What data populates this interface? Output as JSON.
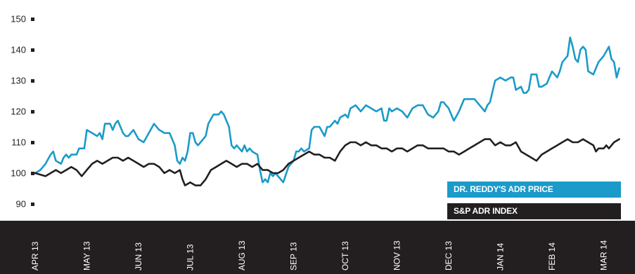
{
  "chart_data": {
    "type": "line",
    "title": "",
    "xlabel": "",
    "ylabel": "",
    "ylim": [
      85,
      152
    ],
    "y_ticks": [
      "150",
      "140",
      "130",
      "120",
      "110",
      "100",
      "90"
    ],
    "x_labels": [
      "APR 13",
      "MAY 13",
      "JUN 13",
      "JUL 13",
      "AUG 13",
      "SEP 13",
      "OCT 13",
      "NOV 13",
      "DEC 13",
      "JAN 14",
      "FEB 14",
      "MAR 14"
    ],
    "x_range": [
      0,
      11.3
    ],
    "grid": false,
    "legend_position": "bottom-right",
    "series": [
      {
        "name": "DR. REDDY'S ADR PRICE",
        "color": "#1a9bc9",
        "points": [
          [
            0,
            100
          ],
          [
            0.1,
            101
          ],
          [
            0.2,
            103
          ],
          [
            0.3,
            106
          ],
          [
            0.35,
            107
          ],
          [
            0.4,
            104
          ],
          [
            0.5,
            103
          ],
          [
            0.55,
            105
          ],
          [
            0.6,
            106
          ],
          [
            0.65,
            105
          ],
          [
            0.7,
            106
          ],
          [
            0.8,
            106
          ],
          [
            0.85,
            108
          ],
          [
            0.95,
            108
          ],
          [
            1.0,
            114
          ],
          [
            1.1,
            113
          ],
          [
            1.2,
            112
          ],
          [
            1.25,
            113
          ],
          [
            1.3,
            111
          ],
          [
            1.35,
            116
          ],
          [
            1.45,
            116
          ],
          [
            1.5,
            114
          ],
          [
            1.55,
            116
          ],
          [
            1.6,
            117
          ],
          [
            1.7,
            113
          ],
          [
            1.75,
            112
          ],
          [
            1.8,
            112
          ],
          [
            1.9,
            114
          ],
          [
            2.0,
            111
          ],
          [
            2.1,
            110
          ],
          [
            2.2,
            113
          ],
          [
            2.3,
            116
          ],
          [
            2.4,
            114
          ],
          [
            2.5,
            113
          ],
          [
            2.6,
            113
          ],
          [
            2.7,
            109
          ],
          [
            2.75,
            104
          ],
          [
            2.8,
            103
          ],
          [
            2.85,
            105
          ],
          [
            2.9,
            104
          ],
          [
            2.95,
            107
          ],
          [
            3.0,
            113
          ],
          [
            3.05,
            113
          ],
          [
            3.1,
            110
          ],
          [
            3.15,
            109
          ],
          [
            3.2,
            110
          ],
          [
            3.3,
            112
          ],
          [
            3.35,
            116
          ],
          [
            3.45,
            119
          ],
          [
            3.55,
            119
          ],
          [
            3.6,
            120
          ],
          [
            3.65,
            119
          ],
          [
            3.75,
            115
          ],
          [
            3.8,
            109
          ],
          [
            3.85,
            108
          ],
          [
            3.9,
            109
          ],
          [
            4.0,
            107
          ],
          [
            4.05,
            109
          ],
          [
            4.1,
            107
          ],
          [
            4.15,
            108
          ],
          [
            4.2,
            107
          ],
          [
            4.3,
            106
          ],
          [
            4.35,
            101
          ],
          [
            4.4,
            97
          ],
          [
            4.45,
            98
          ],
          [
            4.5,
            97
          ],
          [
            4.55,
            100
          ],
          [
            4.6,
            99
          ],
          [
            4.65,
            100
          ],
          [
            4.7,
            99
          ],
          [
            4.8,
            97
          ],
          [
            4.9,
            102
          ],
          [
            5.0,
            104
          ],
          [
            5.05,
            107
          ],
          [
            5.1,
            107
          ],
          [
            5.15,
            108
          ],
          [
            5.2,
            107
          ],
          [
            5.3,
            108
          ],
          [
            5.35,
            114
          ],
          [
            5.4,
            115
          ],
          [
            5.5,
            115
          ],
          [
            5.6,
            112
          ],
          [
            5.65,
            115
          ],
          [
            5.7,
            115
          ],
          [
            5.8,
            117
          ],
          [
            5.85,
            116
          ],
          [
            5.9,
            118
          ],
          [
            6.0,
            119
          ],
          [
            6.05,
            118
          ],
          [
            6.1,
            121
          ],
          [
            6.2,
            122
          ],
          [
            6.3,
            120
          ],
          [
            6.4,
            122
          ],
          [
            6.5,
            121
          ],
          [
            6.6,
            120
          ],
          [
            6.7,
            121
          ],
          [
            6.75,
            117
          ],
          [
            6.8,
            117
          ],
          [
            6.85,
            121
          ],
          [
            6.9,
            120
          ],
          [
            7.0,
            121
          ],
          [
            7.1,
            120
          ],
          [
            7.2,
            118
          ],
          [
            7.3,
            121
          ],
          [
            7.4,
            122
          ],
          [
            7.5,
            122
          ],
          [
            7.6,
            119
          ],
          [
            7.7,
            118
          ],
          [
            7.8,
            120
          ],
          [
            7.85,
            123
          ],
          [
            7.9,
            123
          ],
          [
            8.0,
            121
          ],
          [
            8.1,
            117
          ],
          [
            8.2,
            120
          ],
          [
            8.3,
            124
          ],
          [
            8.4,
            124
          ],
          [
            8.5,
            124
          ],
          [
            8.6,
            122
          ],
          [
            8.7,
            120
          ],
          [
            8.75,
            122
          ],
          [
            8.8,
            123
          ],
          [
            8.9,
            130
          ],
          [
            9.0,
            131
          ],
          [
            9.1,
            130
          ],
          [
            9.2,
            131
          ],
          [
            9.25,
            131
          ],
          [
            9.3,
            127
          ],
          [
            9.4,
            128
          ],
          [
            9.45,
            126
          ],
          [
            9.5,
            126
          ],
          [
            9.55,
            127
          ],
          [
            9.6,
            132
          ],
          [
            9.7,
            132
          ],
          [
            9.75,
            128
          ],
          [
            9.8,
            128
          ],
          [
            9.9,
            129
          ],
          [
            10.0,
            133
          ],
          [
            10.1,
            131
          ],
          [
            10.15,
            133
          ],
          [
            10.2,
            136
          ],
          [
            10.3,
            138
          ],
          [
            10.35,
            144
          ],
          [
            10.4,
            141
          ],
          [
            10.45,
            137
          ],
          [
            10.5,
            136
          ],
          [
            10.55,
            140
          ],
          [
            10.6,
            141
          ],
          [
            10.65,
            140
          ],
          [
            10.7,
            133
          ],
          [
            10.8,
            132
          ],
          [
            10.9,
            136
          ],
          [
            11.0,
            138
          ],
          [
            11.1,
            141
          ],
          [
            11.15,
            137
          ],
          [
            11.2,
            136
          ],
          [
            11.25,
            131
          ],
          [
            11.3,
            134
          ]
        ]
      },
      {
        "name": "S&P ADR INDEX",
        "color": "#231f20",
        "points": [
          [
            0,
            100
          ],
          [
            0.2,
            99
          ],
          [
            0.3,
            100
          ],
          [
            0.4,
            101
          ],
          [
            0.5,
            100
          ],
          [
            0.6,
            101
          ],
          [
            0.7,
            102
          ],
          [
            0.8,
            101
          ],
          [
            0.9,
            99
          ],
          [
            1.0,
            101
          ],
          [
            1.1,
            103
          ],
          [
            1.2,
            104
          ],
          [
            1.3,
            103
          ],
          [
            1.4,
            104
          ],
          [
            1.5,
            105
          ],
          [
            1.6,
            105
          ],
          [
            1.7,
            104
          ],
          [
            1.8,
            105
          ],
          [
            1.9,
            104
          ],
          [
            2.0,
            103
          ],
          [
            2.1,
            102
          ],
          [
            2.2,
            103
          ],
          [
            2.3,
            103
          ],
          [
            2.4,
            102
          ],
          [
            2.5,
            100
          ],
          [
            2.6,
            101
          ],
          [
            2.7,
            100
          ],
          [
            2.8,
            101
          ],
          [
            2.85,
            98
          ],
          [
            2.9,
            96
          ],
          [
            3.0,
            97
          ],
          [
            3.1,
            96
          ],
          [
            3.2,
            96
          ],
          [
            3.3,
            98
          ],
          [
            3.4,
            101
          ],
          [
            3.5,
            102
          ],
          [
            3.6,
            103
          ],
          [
            3.7,
            104
          ],
          [
            3.8,
            103
          ],
          [
            3.9,
            102
          ],
          [
            4.0,
            103
          ],
          [
            4.1,
            103
          ],
          [
            4.2,
            102
          ],
          [
            4.3,
            103
          ],
          [
            4.4,
            101
          ],
          [
            4.5,
            101
          ],
          [
            4.6,
            100
          ],
          [
            4.7,
            100
          ],
          [
            4.8,
            101
          ],
          [
            4.9,
            103
          ],
          [
            5.0,
            104
          ],
          [
            5.1,
            105
          ],
          [
            5.2,
            106
          ],
          [
            5.3,
            107
          ],
          [
            5.4,
            106
          ],
          [
            5.5,
            106
          ],
          [
            5.6,
            105
          ],
          [
            5.7,
            105
          ],
          [
            5.8,
            104
          ],
          [
            5.9,
            107
          ],
          [
            6.0,
            109
          ],
          [
            6.1,
            110
          ],
          [
            6.2,
            110
          ],
          [
            6.3,
            109
          ],
          [
            6.4,
            110
          ],
          [
            6.5,
            109
          ],
          [
            6.6,
            109
          ],
          [
            6.7,
            108
          ],
          [
            6.8,
            108
          ],
          [
            6.9,
            107
          ],
          [
            7.0,
            108
          ],
          [
            7.1,
            108
          ],
          [
            7.2,
            107
          ],
          [
            7.3,
            108
          ],
          [
            7.4,
            109
          ],
          [
            7.5,
            109
          ],
          [
            7.6,
            108
          ],
          [
            7.7,
            108
          ],
          [
            7.8,
            108
          ],
          [
            7.9,
            108
          ],
          [
            8.0,
            107
          ],
          [
            8.1,
            107
          ],
          [
            8.2,
            106
          ],
          [
            8.3,
            107
          ],
          [
            8.4,
            108
          ],
          [
            8.5,
            109
          ],
          [
            8.6,
            110
          ],
          [
            8.7,
            111
          ],
          [
            8.8,
            111
          ],
          [
            8.9,
            109
          ],
          [
            9.0,
            110
          ],
          [
            9.1,
            109
          ],
          [
            9.2,
            109
          ],
          [
            9.3,
            110
          ],
          [
            9.4,
            107
          ],
          [
            9.5,
            106
          ],
          [
            9.6,
            105
          ],
          [
            9.7,
            104
          ],
          [
            9.8,
            106
          ],
          [
            9.9,
            107
          ],
          [
            10.0,
            108
          ],
          [
            10.1,
            109
          ],
          [
            10.2,
            110
          ],
          [
            10.3,
            111
          ],
          [
            10.4,
            110
          ],
          [
            10.5,
            110
          ],
          [
            10.6,
            111
          ],
          [
            10.7,
            110
          ],
          [
            10.8,
            109
          ],
          [
            10.85,
            107
          ],
          [
            10.9,
            108
          ],
          [
            11.0,
            108
          ],
          [
            11.05,
            109
          ],
          [
            11.1,
            108
          ],
          [
            11.2,
            110
          ],
          [
            11.3,
            111
          ]
        ]
      }
    ]
  },
  "legend": {
    "drreddy_label": "DR. REDDY'S ADR PRICE",
    "sp_label": "S&P ADR INDEX",
    "drreddy_color": "#1a9bc9",
    "sp_color": "#231f20"
  },
  "colors": {
    "axis_band": "#231f20",
    "tick_marker": "#231f20"
  }
}
